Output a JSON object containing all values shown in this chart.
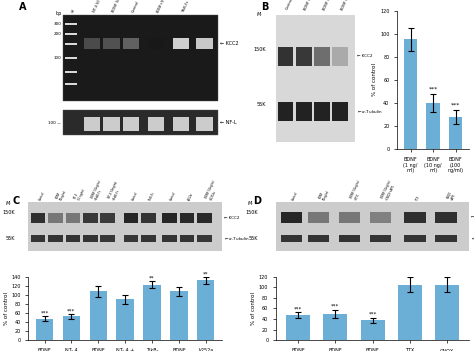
{
  "panel_B_bar": {
    "categories": [
      "BDNF\n(1 ng/\nml)",
      "BDNF\n(10 ng/\nml)",
      "BDNF\n(100\nng/ml)"
    ],
    "values": [
      95,
      40,
      28
    ],
    "errors": [
      10,
      8,
      6
    ],
    "ylabel": "% of control",
    "ylim": [
      0,
      120
    ],
    "yticks": [
      0,
      20,
      40,
      60,
      80,
      100,
      120
    ],
    "sig": [
      "",
      "***",
      "***"
    ]
  },
  "panel_C_bar": {
    "categories": [
      "BDNF",
      "NT- 4",
      "BDNF\n+ TrkB-\nFc",
      "NT- 4 +\nTrkB-\nFc",
      "TrkB-\nFc",
      "BDNF\n+\nk252a",
      "k252a"
    ],
    "values": [
      48,
      53,
      108,
      90,
      122,
      108,
      132
    ],
    "errors": [
      5,
      5,
      12,
      10,
      8,
      10,
      8
    ],
    "ylabel": "% of control",
    "ylim": [
      0,
      140
    ],
    "yticks": [
      0,
      20,
      40,
      60,
      80,
      100,
      120,
      140
    ],
    "sig": [
      "***",
      "***",
      "",
      "",
      "**",
      "",
      "**"
    ]
  },
  "panel_D_bar": {
    "categories": [
      "BDNF",
      "BDNF\n+ TTX",
      "BDNF\n+ CNQX\n+ AP5",
      "TTX",
      "CNQX\n+\nAP5"
    ],
    "values": [
      48,
      50,
      38,
      105,
      105
    ],
    "errors": [
      5,
      8,
      5,
      15,
      15
    ],
    "ylabel": "% of control",
    "ylim": [
      0,
      120
    ],
    "yticks": [
      0,
      20,
      40,
      60,
      80,
      100,
      120
    ],
    "sig": [
      "***",
      "***",
      "***",
      "",
      ""
    ]
  },
  "bar_color": "#6baed6",
  "background_color": "#ffffff",
  "gel_bg": "#111111",
  "wb_bg": "#e8e8e8",
  "wb_band_dark": "#333333",
  "wb_band_light": "#bbbbbb"
}
